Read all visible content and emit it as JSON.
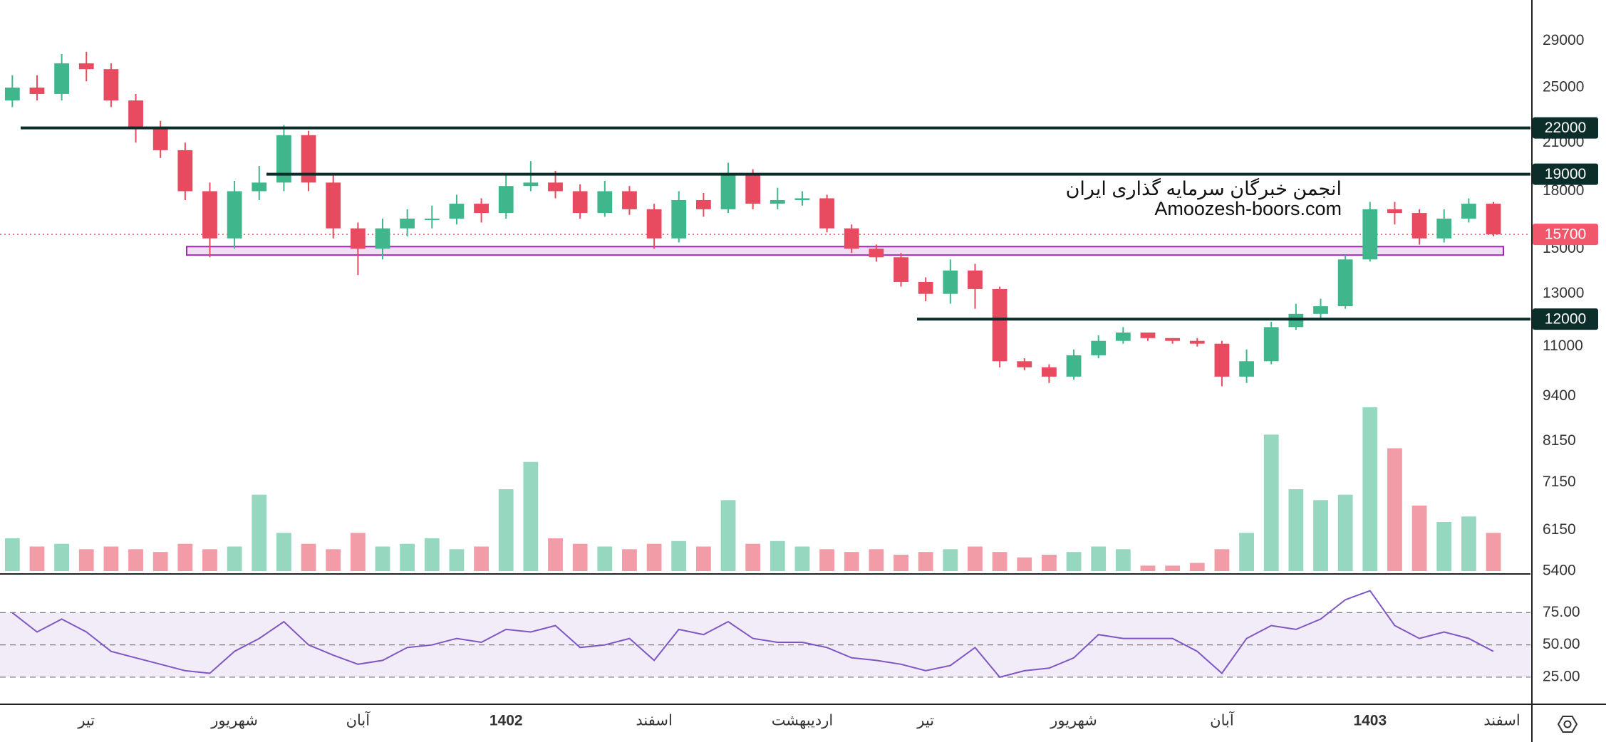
{
  "chart_data": {
    "type": "candlestick",
    "log_scale": true,
    "categories": [
      null,
      null,
      null,
      "تیر",
      null,
      null,
      null,
      null,
      null,
      "شهریور",
      null,
      null,
      null,
      null,
      "آبان",
      null,
      null,
      null,
      null,
      null,
      "1402",
      null,
      null,
      null,
      null,
      null,
      "اسفند",
      null,
      null,
      null,
      null,
      null,
      "اردیبهشت",
      null,
      null,
      null,
      null,
      "تیر",
      null,
      null,
      null,
      null,
      null,
      "شهریور",
      null,
      null,
      null,
      null,
      null,
      "آبان",
      null,
      null,
      null,
      null,
      null,
      "1403",
      null,
      null,
      null,
      null,
      null,
      "اسفند"
    ],
    "open": [
      24000,
      25000,
      24500,
      27000,
      26500,
      24000,
      22000,
      20500,
      18000,
      15500,
      18000,
      18500,
      21500,
      18500,
      16000,
      15000,
      16000,
      16500,
      16500,
      17300,
      16800,
      18300,
      18500,
      18000,
      16800,
      18000,
      17000,
      15500,
      17500,
      17000,
      19000,
      17300,
      17500,
      17600,
      16000,
      15000,
      14600,
      13500,
      13000,
      14000,
      13200,
      10500,
      10300,
      10000,
      10700,
      11200,
      11500,
      11300,
      11200,
      11100,
      10000,
      10500,
      11700,
      12200,
      12500,
      14500,
      17000,
      16800,
      15500,
      16500,
      17300,
      null
    ],
    "high": [
      26000,
      26000,
      27800,
      28000,
      27000,
      24500,
      22500,
      21000,
      18500,
      18600,
      19500,
      22200,
      21800,
      19000,
      16300,
      16500,
      17000,
      17200,
      17800,
      17600,
      19000,
      19800,
      19200,
      18400,
      18600,
      18300,
      17300,
      18000,
      17900,
      19700,
      19300,
      18200,
      18000,
      17800,
      16200,
      15200,
      14800,
      13700,
      14500,
      14300,
      13300,
      10600,
      10400,
      10900,
      11400,
      11700,
      11500,
      11300,
      11300,
      11200,
      10900,
      11900,
      12600,
      12800,
      14700,
      17400,
      17400,
      17000,
      17000,
      17600,
      17400,
      null
    ],
    "low": [
      23500,
      24000,
      24000,
      25500,
      23500,
      21000,
      20000,
      17500,
      14600,
      15000,
      17500,
      18000,
      18000,
      15500,
      13800,
      14500,
      15600,
      16000,
      16200,
      16300,
      16500,
      18000,
      17600,
      16500,
      16600,
      16700,
      15000,
      15300,
      16600,
      16800,
      17000,
      17000,
      17200,
      15800,
      14800,
      14400,
      13300,
      12700,
      12600,
      12400,
      10300,
      10200,
      9800,
      9900,
      10600,
      11100,
      11200,
      11100,
      11000,
      9700,
      9800,
      10400,
      11600,
      12000,
      12400,
      14400,
      16200,
      15200,
      15300,
      16300,
      15600,
      null
    ],
    "close": [
      25000,
      24500,
      27000,
      26500,
      24000,
      22000,
      20500,
      18000,
      15500,
      18000,
      18500,
      21500,
      18500,
      16000,
      15000,
      16000,
      16500,
      16500,
      17300,
      16800,
      18300,
      18500,
      18000,
      16800,
      18000,
      17000,
      15500,
      17500,
      17000,
      19000,
      17300,
      17500,
      17600,
      16000,
      15000,
      14600,
      13500,
      13000,
      14000,
      13200,
      10500,
      10300,
      10000,
      10700,
      11200,
      11500,
      11300,
      11200,
      11100,
      10000,
      10500,
      11700,
      12200,
      12500,
      14500,
      17000,
      16800,
      15500,
      16500,
      17300,
      15700,
      null
    ],
    "volume": [
      12,
      9,
      10,
      8,
      9,
      8,
      7,
      10,
      8,
      9,
      28,
      14,
      10,
      8,
      14,
      9,
      10,
      12,
      8,
      9,
      30,
      40,
      12,
      10,
      9,
      8,
      10,
      11,
      9,
      26,
      10,
      11,
      9,
      8,
      7,
      8,
      6,
      7,
      8,
      9,
      7,
      5,
      6,
      7,
      9,
      8,
      2,
      2,
      3,
      8,
      14,
      50,
      30,
      26,
      28,
      60,
      45,
      24,
      18,
      20,
      14,
      null
    ],
    "up_color": "#3fb68b",
    "down_color": "#e84a5f",
    "ylim": [
      5350,
      33000
    ],
    "yticks": [
      29000,
      25000,
      21000,
      18000,
      15000,
      13000,
      11000,
      9400,
      8150,
      7150,
      6150,
      5400
    ],
    "levels": [
      22000,
      19000,
      12000
    ],
    "level_color": "#0b2e2a",
    "current_price": 15700,
    "current_color": "#f0576a",
    "zone": [
      14700,
      15100
    ],
    "zone_color": "#9c27b0",
    "rsi": [
      75,
      60,
      70,
      60,
      45,
      40,
      35,
      30,
      28,
      45,
      55,
      68,
      50,
      42,
      35,
      38,
      48,
      50,
      55,
      52,
      62,
      60,
      65,
      48,
      50,
      55,
      38,
      62,
      58,
      68,
      55,
      52,
      52,
      48,
      40,
      38,
      35,
      30,
      34,
      48,
      25,
      30,
      32,
      40,
      58,
      55,
      55,
      55,
      45,
      28,
      55,
      65,
      62,
      70,
      85,
      92,
      65,
      55,
      60,
      55,
      45,
      null
    ],
    "rsi_color": "#7e57c2",
    "rsi_ylim": [
      4,
      105
    ],
    "rsi_yticks": [
      {
        "value": 75,
        "label": "75.00"
      },
      {
        "value": 50,
        "label": "50.00"
      },
      {
        "value": 25,
        "label": "25.00"
      }
    ],
    "watermark": [
      "انجمن خبرگان سرمایه گذاری ایران",
      "Amoozesh-boors.com"
    ]
  }
}
